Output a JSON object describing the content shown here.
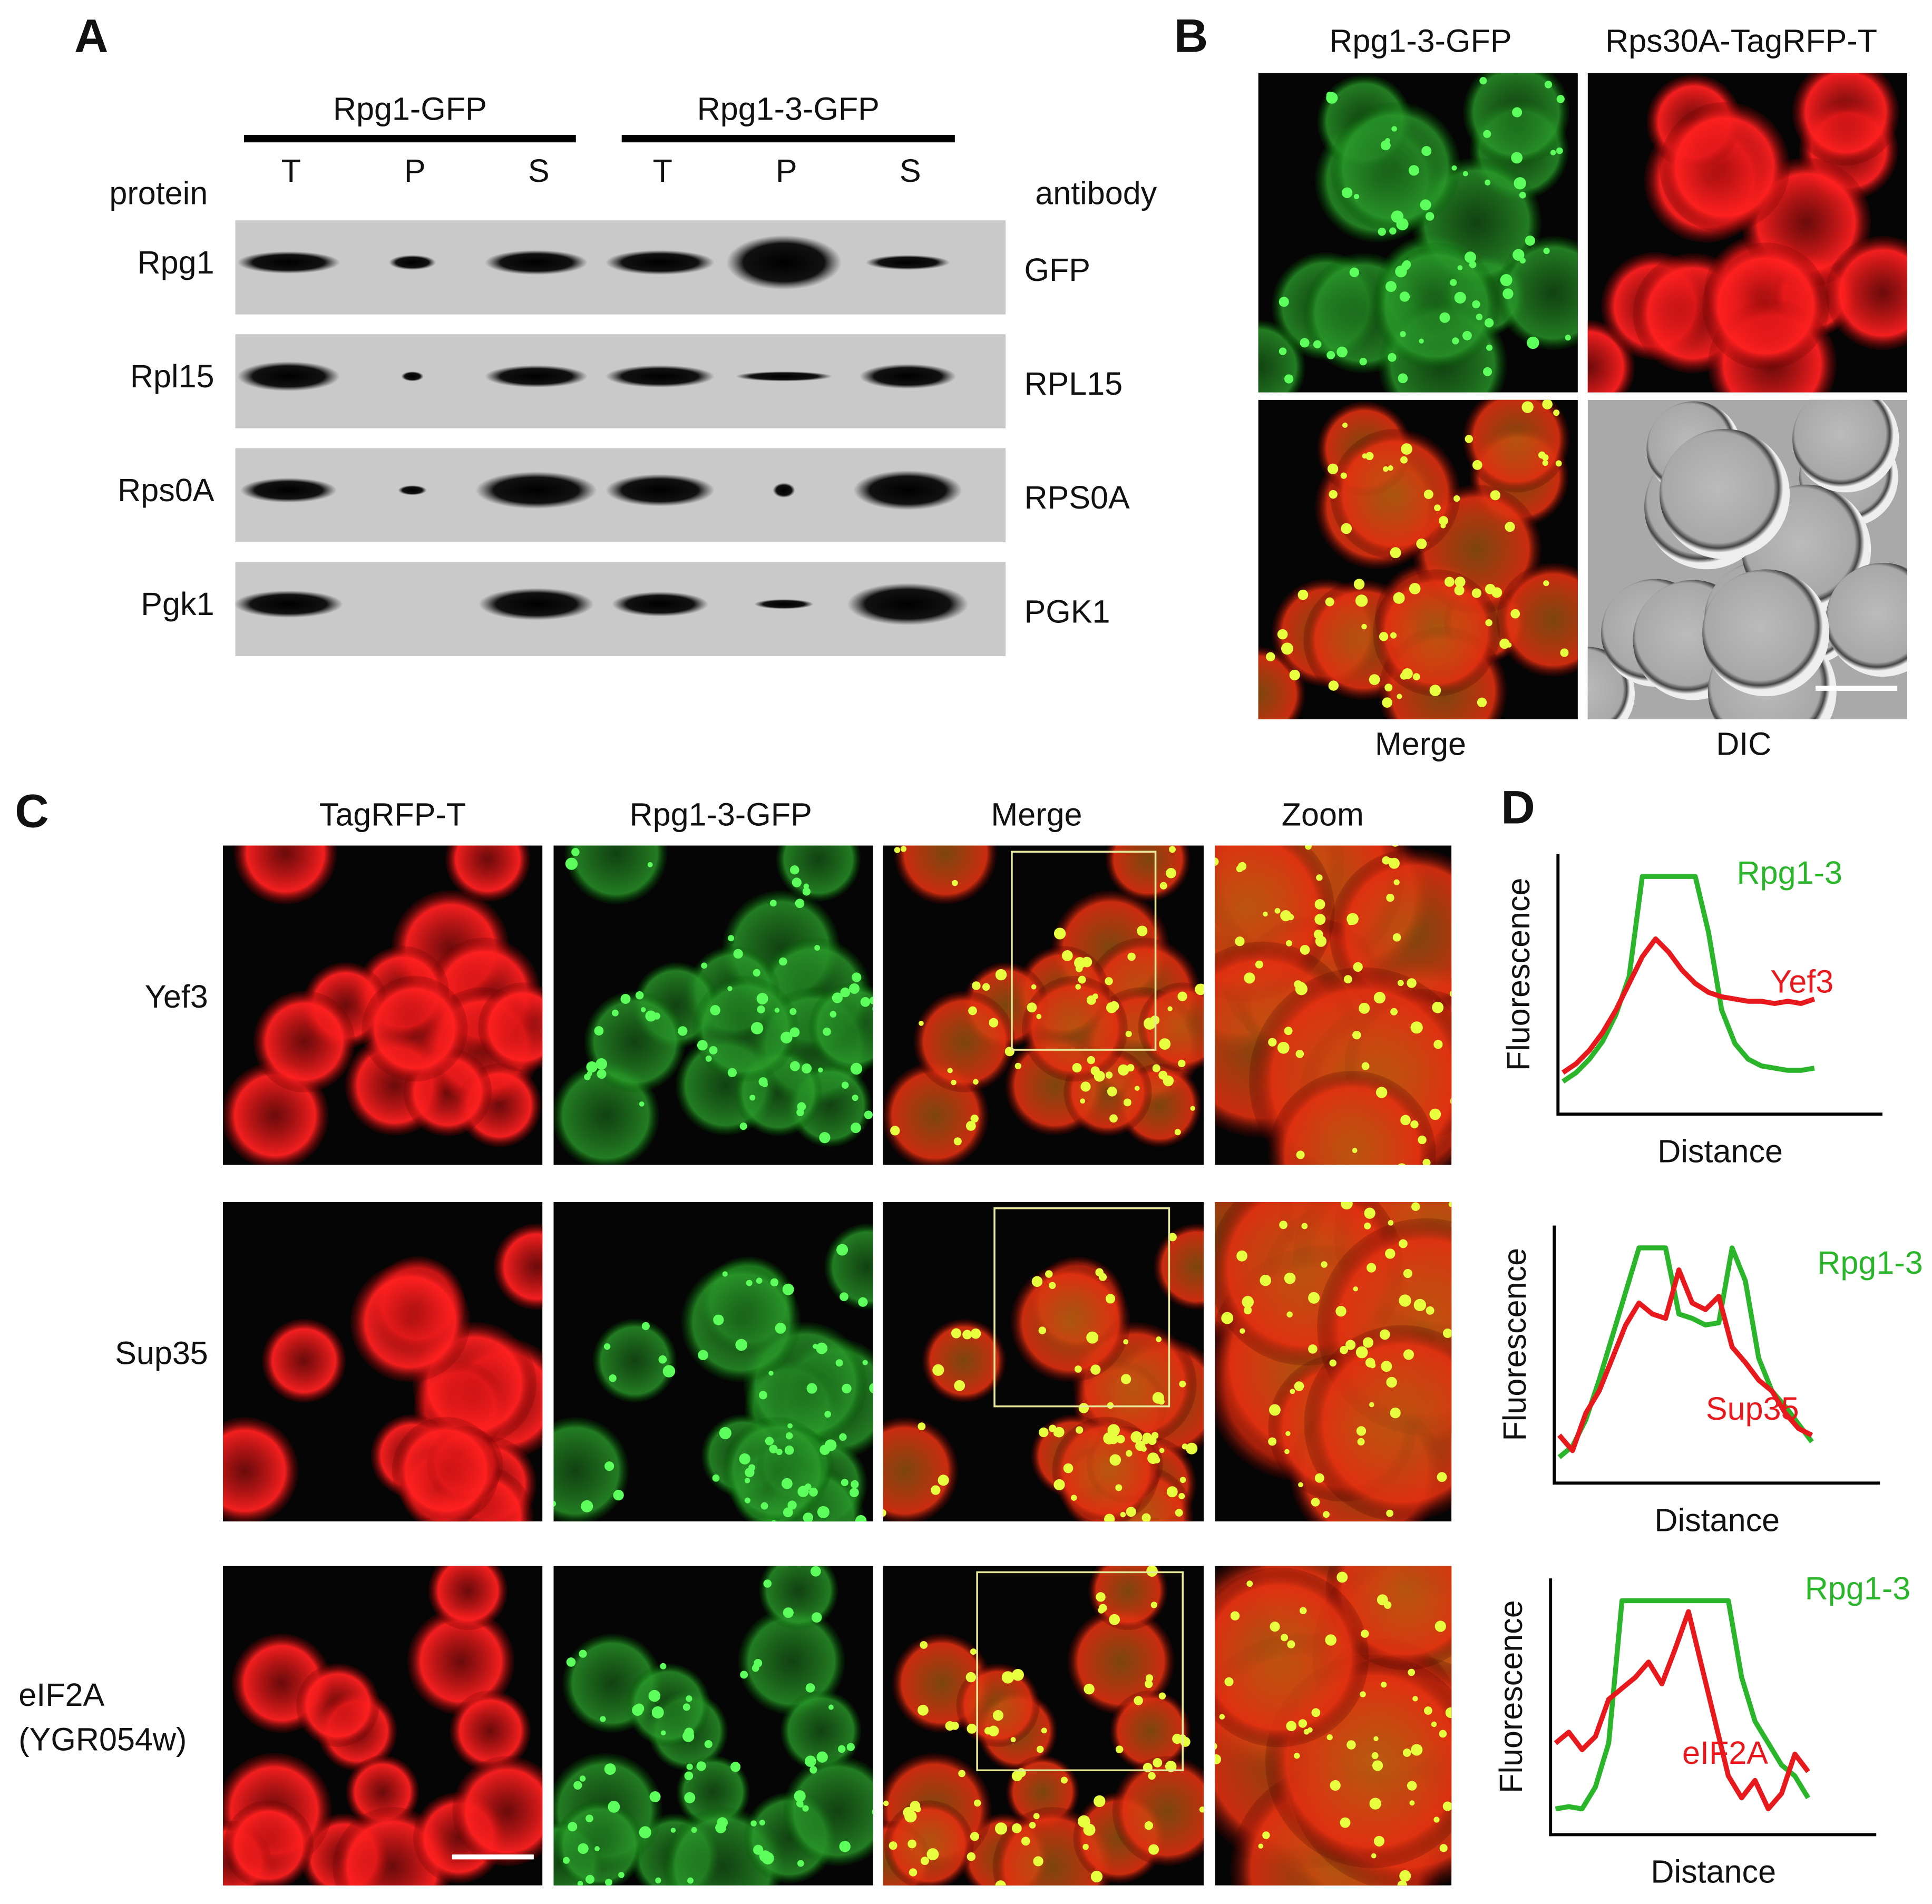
{
  "panel_a": {
    "label": "A",
    "groups": [
      {
        "name": "Rpg1-GFP",
        "lanes": [
          "T",
          "P",
          "S"
        ]
      },
      {
        "name": "Rpg1-3-GFP",
        "lanes": [
          "T",
          "P",
          "S"
        ]
      }
    ],
    "left_header": "protein",
    "right_header": "antibody",
    "rows": [
      {
        "protein": "Rpg1",
        "antibody": "GFP"
      },
      {
        "protein": "Rpl15",
        "antibody": "RPL15"
      },
      {
        "protein": "Rps0A",
        "antibody": "RPS0A"
      },
      {
        "protein": "Pgk1",
        "antibody": "PGK1"
      }
    ]
  },
  "panel_b": {
    "label": "B",
    "columns": [
      "Rpg1-3-GFP",
      "Rps30A-TagRFP-T"
    ],
    "bottom_labels": [
      "Merge",
      "DIC"
    ]
  },
  "panel_c": {
    "label": "C",
    "columns": [
      "TagRFP-T",
      "Rpg1-3-GFP",
      "Merge",
      "Zoom"
    ],
    "rows": [
      [
        "Yef3"
      ],
      [
        "Sup35"
      ],
      [
        "eIF2A",
        "(YGR054w)"
      ]
    ]
  },
  "panel_d": {
    "label": "D",
    "plots": [
      {
        "type": "line",
        "y_label": "Fluorescence",
        "x_label": "Distance",
        "ylim": [
          0,
          100
        ],
        "series": [
          {
            "name": "Rpg1-3",
            "color": "#2ab52a",
            "values": [
              8,
              12,
              18,
              26,
              38,
              55,
              100,
              100,
              100,
              100,
              100,
              75,
              40,
              25,
              18,
              15,
              14,
              13,
              13,
              14
            ]
          },
          {
            "name": "Yef3",
            "color": "#e8191c",
            "values": [
              12,
              16,
              22,
              30,
              40,
              52,
              64,
              72,
              66,
              58,
              52,
              48,
              46,
              45,
              44,
              44,
              43,
              44,
              43,
              45
            ]
          }
        ]
      },
      {
        "type": "line",
        "y_label": "Fluorescence",
        "x_label": "Distance",
        "ylim": [
          0,
          100
        ],
        "series": [
          {
            "name": "Rpg1-3",
            "color": "#2ab52a",
            "values": [
              5,
              10,
              22,
              40,
              60,
              80,
              100,
              100,
              100,
              70,
              68,
              65,
              66,
              100,
              85,
              50,
              35,
              28,
              20,
              12
            ]
          },
          {
            "name": "Sup35",
            "color": "#e8191c",
            "values": [
              15,
              8,
              25,
              35,
              50,
              65,
              75,
              70,
              68,
              90,
              75,
              72,
              78,
              55,
              48,
              40,
              35,
              25,
              18,
              15
            ]
          }
        ]
      },
      {
        "type": "line",
        "y_label": "Fluorescence",
        "x_label": "Distance",
        "ylim": [
          0,
          100
        ],
        "series": [
          {
            "name": "Rpg1-3",
            "color": "#2ab52a",
            "values": [
              5,
              6,
              5,
              15,
              35,
              100,
              100,
              100,
              100,
              100,
              100,
              100,
              100,
              100,
              65,
              45,
              35,
              25,
              20,
              10
            ]
          },
          {
            "name": "eIF2A",
            "color": "#e8191c",
            "values": [
              35,
              40,
              32,
              38,
              55,
              60,
              65,
              72,
              62,
              78,
              95,
              70,
              45,
              20,
              10,
              18,
              5,
              12,
              30,
              22
            ]
          }
        ]
      }
    ]
  }
}
